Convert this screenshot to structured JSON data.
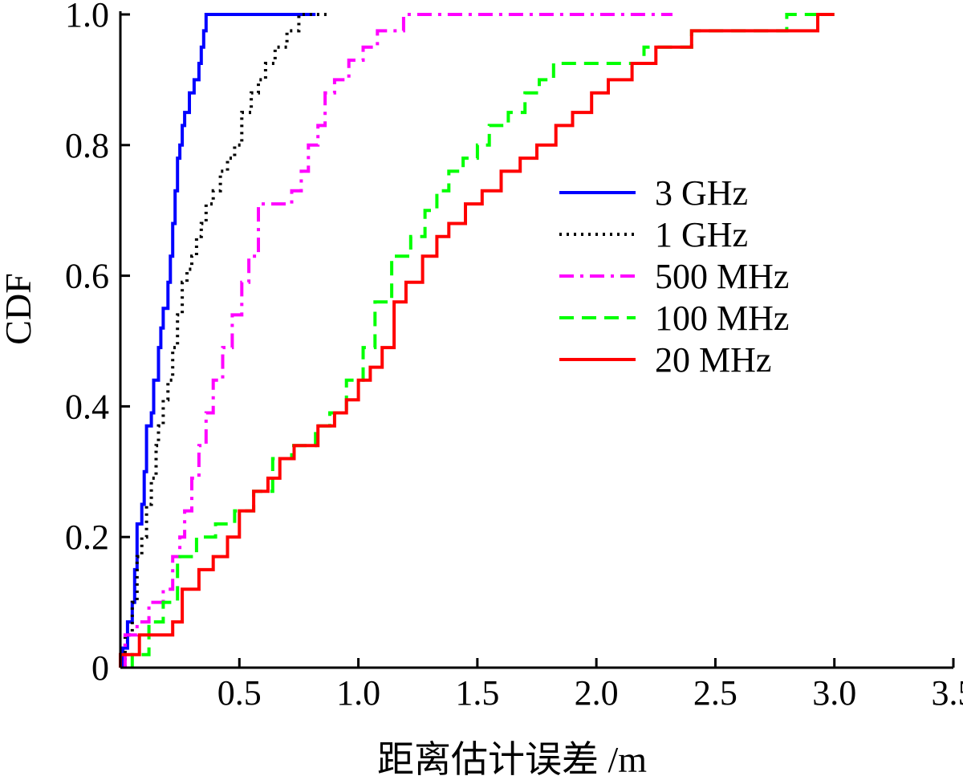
{
  "chart_data": {
    "type": "line",
    "title": "",
    "xlabel": "距离估计误差 /m",
    "ylabel": "CDF",
    "xlim": [
      0,
      3.5
    ],
    "ylim": [
      0,
      1.0
    ],
    "x_ticks": [
      {
        "value": 0.5,
        "label": "0.5"
      },
      {
        "value": 1.0,
        "label": "1.0"
      },
      {
        "value": 1.5,
        "label": "1.5"
      },
      {
        "value": 2.0,
        "label": "2.0"
      },
      {
        "value": 2.5,
        "label": "2.5"
      },
      {
        "value": 3.0,
        "label": "3.0"
      },
      {
        "value": 3.5,
        "label": "3.5"
      }
    ],
    "y_ticks": [
      {
        "value": 0,
        "label": "0"
      },
      {
        "value": 0.2,
        "label": "0.2"
      },
      {
        "value": 0.4,
        "label": "0.4"
      },
      {
        "value": 0.6,
        "label": "0.6"
      },
      {
        "value": 0.8,
        "label": "0.8"
      },
      {
        "value": 1.0,
        "label": "1.0"
      }
    ],
    "grid": false,
    "legend_position": "center-right",
    "series": [
      {
        "name": "3 GHz",
        "color": "#0000ff",
        "dash": "solid",
        "step_x": [
          0.01,
          0.03,
          0.05,
          0.06,
          0.07,
          0.09,
          0.1,
          0.11,
          0.13,
          0.14,
          0.16,
          0.17,
          0.18,
          0.2,
          0.21,
          0.22,
          0.23,
          0.24,
          0.25,
          0.26,
          0.27,
          0.29,
          0.31,
          0.33,
          0.34,
          0.35,
          0.36,
          0.38,
          0.42,
          0.45,
          0.48,
          0.52,
          0.82
        ],
        "step_y": [
          0.03,
          0.07,
          0.1,
          0.15,
          0.22,
          0.25,
          0.3,
          0.37,
          0.39,
          0.44,
          0.49,
          0.52,
          0.55,
          0.59,
          0.63,
          0.68,
          0.73,
          0.78,
          0.8,
          0.83,
          0.85,
          0.88,
          0.9,
          0.925,
          0.95,
          0.975,
          1.0,
          1.0,
          1.0,
          1.0,
          1.0,
          1.0,
          1.0
        ]
      },
      {
        "name": "1 GHz",
        "color": "#000000",
        "dash": "dotted",
        "step_x": [
          0.02,
          0.05,
          0.07,
          0.09,
          0.11,
          0.13,
          0.15,
          0.16,
          0.18,
          0.2,
          0.22,
          0.24,
          0.26,
          0.28,
          0.3,
          0.32,
          0.34,
          0.36,
          0.39,
          0.42,
          0.45,
          0.48,
          0.51,
          0.55,
          0.58,
          0.61,
          0.65,
          0.7,
          0.75,
          0.8,
          0.86,
          0.88
        ],
        "step_y": [
          0.05,
          0.1,
          0.17,
          0.2,
          0.25,
          0.29,
          0.34,
          0.37,
          0.41,
          0.44,
          0.49,
          0.54,
          0.59,
          0.61,
          0.63,
          0.66,
          0.68,
          0.71,
          0.73,
          0.76,
          0.78,
          0.8,
          0.85,
          0.88,
          0.9,
          0.925,
          0.95,
          0.975,
          1.0,
          1.0,
          1.0,
          1.0
        ]
      },
      {
        "name": "500 MHz",
        "color": "#ff00ff",
        "dash": "dashdot",
        "step_x": [
          0.02,
          0.07,
          0.12,
          0.18,
          0.22,
          0.25,
          0.27,
          0.3,
          0.33,
          0.36,
          0.39,
          0.43,
          0.47,
          0.51,
          0.54,
          0.58,
          0.72,
          0.76,
          0.79,
          0.83,
          0.86,
          0.9,
          0.96,
          1.02,
          1.08,
          1.19,
          2.3,
          2.32
        ],
        "step_y": [
          0.05,
          0.07,
          0.1,
          0.12,
          0.17,
          0.2,
          0.24,
          0.29,
          0.34,
          0.39,
          0.44,
          0.49,
          0.54,
          0.59,
          0.63,
          0.71,
          0.73,
          0.76,
          0.8,
          0.83,
          0.88,
          0.9,
          0.93,
          0.95,
          0.975,
          1.0,
          1.0,
          1.0
        ]
      },
      {
        "name": "100 MHz",
        "color": "#00ff00",
        "dash": "dashed",
        "step_x": [
          0.05,
          0.12,
          0.18,
          0.24,
          0.32,
          0.4,
          0.48,
          0.56,
          0.64,
          0.72,
          0.82,
          0.88,
          0.95,
          1.02,
          1.07,
          1.14,
          1.22,
          1.28,
          1.33,
          1.38,
          1.44,
          1.5,
          1.55,
          1.63,
          1.7,
          1.76,
          1.82,
          2.2,
          2.4,
          2.8,
          3.0
        ],
        "step_y": [
          0.02,
          0.07,
          0.1,
          0.17,
          0.2,
          0.22,
          0.24,
          0.27,
          0.32,
          0.34,
          0.37,
          0.39,
          0.44,
          0.49,
          0.56,
          0.63,
          0.66,
          0.7,
          0.73,
          0.76,
          0.78,
          0.8,
          0.83,
          0.85,
          0.88,
          0.9,
          0.925,
          0.95,
          0.975,
          1.0,
          1.0
        ]
      },
      {
        "name": "20 MHz",
        "color": "#ff0000",
        "dash": "solid",
        "step_x": [
          0.0,
          0.08,
          0.22,
          0.26,
          0.33,
          0.39,
          0.45,
          0.5,
          0.56,
          0.62,
          0.67,
          0.73,
          0.83,
          0.9,
          0.95,
          1.0,
          1.05,
          1.1,
          1.15,
          1.2,
          1.27,
          1.33,
          1.38,
          1.45,
          1.52,
          1.6,
          1.68,
          1.75,
          1.83,
          1.9,
          1.98,
          2.05,
          2.15,
          2.25,
          2.4,
          2.93,
          3.0
        ],
        "step_y": [
          0.02,
          0.05,
          0.07,
          0.12,
          0.15,
          0.17,
          0.2,
          0.24,
          0.27,
          0.29,
          0.32,
          0.34,
          0.37,
          0.39,
          0.41,
          0.44,
          0.46,
          0.49,
          0.56,
          0.59,
          0.63,
          0.66,
          0.68,
          0.71,
          0.73,
          0.76,
          0.78,
          0.8,
          0.83,
          0.85,
          0.88,
          0.9,
          0.925,
          0.95,
          0.975,
          1.0,
          1.0
        ]
      }
    ]
  }
}
